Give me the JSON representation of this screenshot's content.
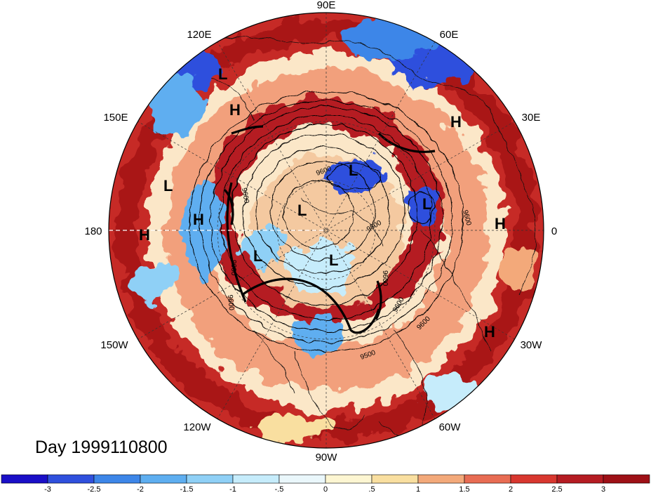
{
  "date_label": "Day 1999110800",
  "longitude_labels": [
    {
      "text": "90E"
    },
    {
      "text": "60E"
    },
    {
      "text": "30E"
    },
    {
      "text": "0"
    },
    {
      "text": "30W"
    },
    {
      "text": "60W"
    },
    {
      "text": "90W"
    },
    {
      "text": "120W"
    },
    {
      "text": "150W"
    },
    {
      "text": "180"
    },
    {
      "text": "150E"
    },
    {
      "text": "120E"
    }
  ],
  "pressure_centers": [
    {
      "text": "L"
    },
    {
      "text": "H"
    },
    {
      "text": "H"
    },
    {
      "text": "L"
    },
    {
      "text": "L"
    },
    {
      "text": "H"
    },
    {
      "text": "H"
    },
    {
      "text": "L"
    },
    {
      "text": "L"
    },
    {
      "text": "L"
    },
    {
      "text": "L"
    },
    {
      "text": "H"
    },
    {
      "text": "H"
    }
  ],
  "contour_labels": [
    "9600",
    "9600",
    "9600",
    "9500",
    "9600",
    "9600",
    "9500",
    "9600",
    "9600",
    "9600"
  ],
  "colorbar": {
    "labels": [
      "-3",
      "-2.5",
      "-2",
      "-1.5",
      "-1",
      "-.5",
      "0",
      ".5",
      "1",
      "1.5",
      "2",
      "2.5",
      "3"
    ],
    "colors": [
      "#1a0fc7",
      "#2f50dd",
      "#3d86e8",
      "#5eaef0",
      "#8fd0f6",
      "#c6ecfb",
      "#eaf7fb",
      "#fdf6d2",
      "#f9dfa0",
      "#f3a97a",
      "#e86c53",
      "#d8372f",
      "#b51c22",
      "#9e1016"
    ]
  }
}
